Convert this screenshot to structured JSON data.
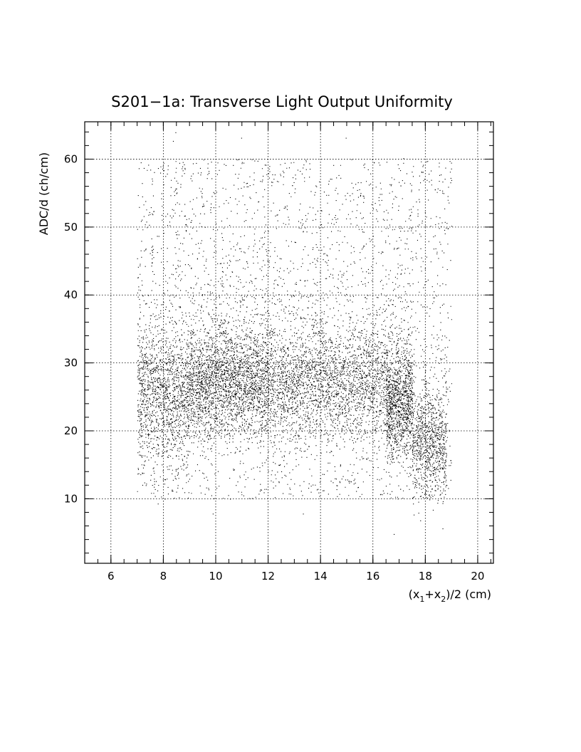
{
  "chart_data": {
    "type": "scatter",
    "title": "S201−1a: Transverse Light Output Uniformity",
    "xlabel": "(x1+x2)/2 (cm)",
    "xlabel_parts": {
      "open": "(x",
      "sub1": "1",
      "plus": "+x",
      "sub2": "2",
      "close": ")/2 (cm)"
    },
    "ylabel": "ADC/d (ch/cm)",
    "xlim": [
      5.0,
      20.6
    ],
    "ylim": [
      0.5,
      65.5
    ],
    "x_ticks": [
      6,
      8,
      10,
      12,
      14,
      16,
      18,
      20
    ],
    "x_tick_labels": [
      "6",
      "8",
      "10",
      "12",
      "14",
      "16",
      "18",
      "20"
    ],
    "y_ticks": [
      10,
      20,
      30,
      40,
      50,
      60
    ],
    "y_tick_labels": [
      "10",
      "20",
      "30",
      "40",
      "50",
      "60"
    ],
    "grid": true,
    "grid_style": "dotted",
    "marker_color": "#000000",
    "density_description": [
      {
        "x_range": [
          7.0,
          9.0
        ],
        "y_center": 25,
        "y_spread": 5,
        "relative_density": 0.35
      },
      {
        "x_range": [
          9.0,
          12.0
        ],
        "y_center": 27,
        "y_spread": 4,
        "relative_density": 0.8
      },
      {
        "x_range": [
          12.0,
          16.5
        ],
        "y_center": 27,
        "y_spread": 4,
        "relative_density": 1.0
      },
      {
        "x_range": [
          16.5,
          17.5
        ],
        "y_center": 24,
        "y_spread": 4,
        "relative_density": 0.6
      },
      {
        "x_range": [
          17.5,
          18.8
        ],
        "y_center": 18,
        "y_spread": 4,
        "relative_density": 0.35
      }
    ],
    "sparse_halo": {
      "x_range": [
        7.0,
        19.0
      ],
      "y_range": [
        10,
        60
      ]
    }
  }
}
